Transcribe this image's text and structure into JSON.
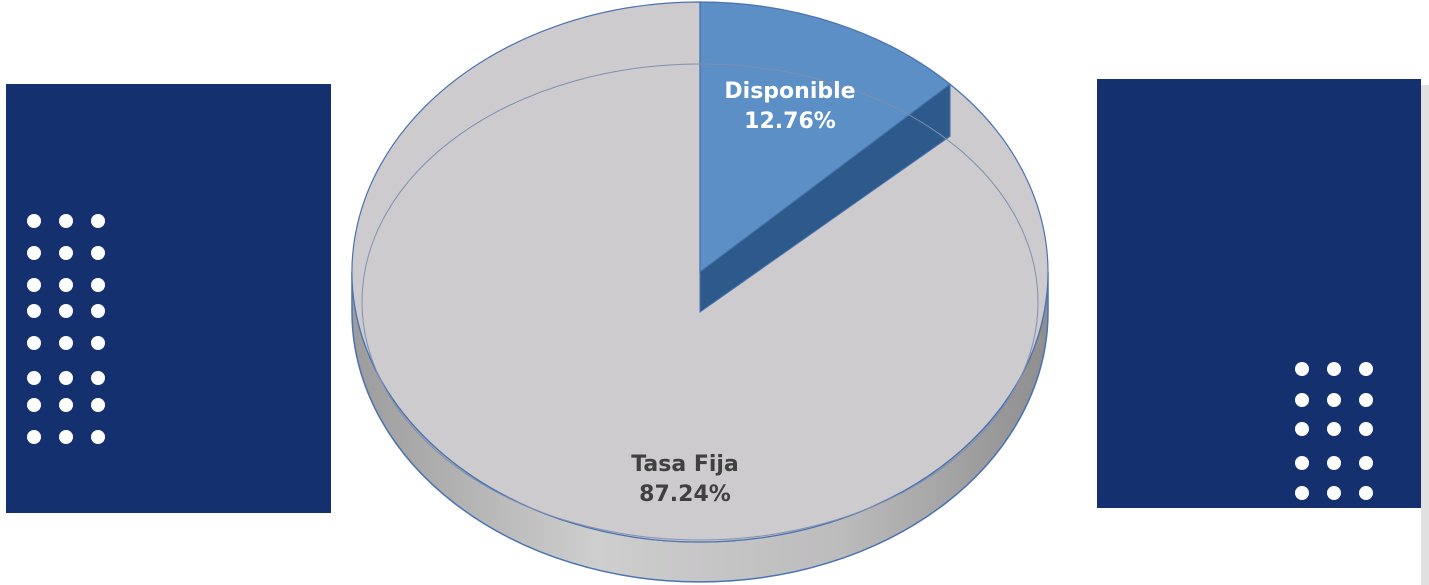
{
  "chart_data": {
    "type": "pie",
    "categories": [
      "Disponible",
      "Tasa Fija"
    ],
    "values": [
      12.76,
      87.24
    ],
    "value_labels": [
      "12.76%",
      "87.24%"
    ],
    "colors": [
      "#5b8fc5",
      "#cdcbcd"
    ]
  }
}
